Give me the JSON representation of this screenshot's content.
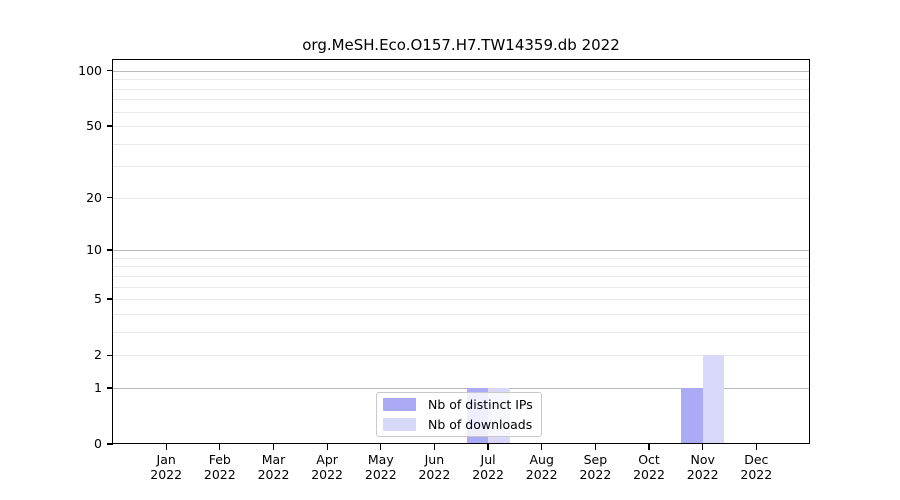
{
  "title": "org.MeSH.Eco.O157.H7.TW14359.db 2022",
  "chart_data": {
    "type": "bar",
    "title": "org.MeSH.Eco.O157.H7.TW14359.db 2022",
    "categories": [
      "Jan",
      "Feb",
      "Mar",
      "Apr",
      "May",
      "Jun",
      "Jul",
      "Aug",
      "Sep",
      "Oct",
      "Nov",
      "Dec"
    ],
    "year_label": "2022",
    "series": [
      {
        "name": "Nb of distinct IPs",
        "color": "#aaaaf7",
        "values": [
          0,
          0,
          0,
          0,
          0,
          0,
          1,
          0,
          0,
          0,
          1,
          0
        ]
      },
      {
        "name": "Nb of downloads",
        "color": "#d8d8f8",
        "values": [
          0,
          0,
          0,
          0,
          0,
          0,
          1,
          0,
          0,
          0,
          2,
          0
        ]
      }
    ],
    "xlabel": "",
    "ylabel": "",
    "y_scale": "log1p",
    "ylim": [
      0,
      115
    ],
    "y_major_ticks": [
      0,
      1,
      2,
      5,
      10,
      20,
      50,
      100
    ],
    "y_minor_ticks": [
      3,
      4,
      6,
      7,
      8,
      9,
      30,
      40,
      60,
      70,
      80,
      90
    ],
    "grid": true,
    "legend_position": "inside-bottom-center",
    "colors": {
      "decade_grid": "#b9b9b9",
      "minor_grid": "#e9e9e9",
      "axis": "#000000",
      "background": "#ffffff"
    }
  }
}
